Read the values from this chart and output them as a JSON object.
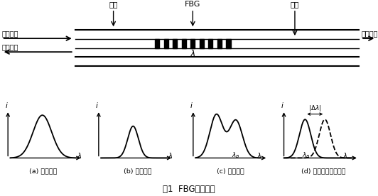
{
  "title": "图1  FBG传感原理",
  "bg_color": "#ffffff",
  "text_color": "#000000",
  "top_labels": {
    "baoceng": "包层",
    "FBG": "FBG",
    "xinzhi": "纤芯",
    "rusheguang": "入射光谱",
    "fansheguang": "反射光谱",
    "toushe": "透射光谱"
  },
  "sub_labels": [
    "(a) 入射光谱",
    "(b) 反射光谱",
    "(c) 透射光谱",
    "(d) 反射光谱波长移动"
  ]
}
